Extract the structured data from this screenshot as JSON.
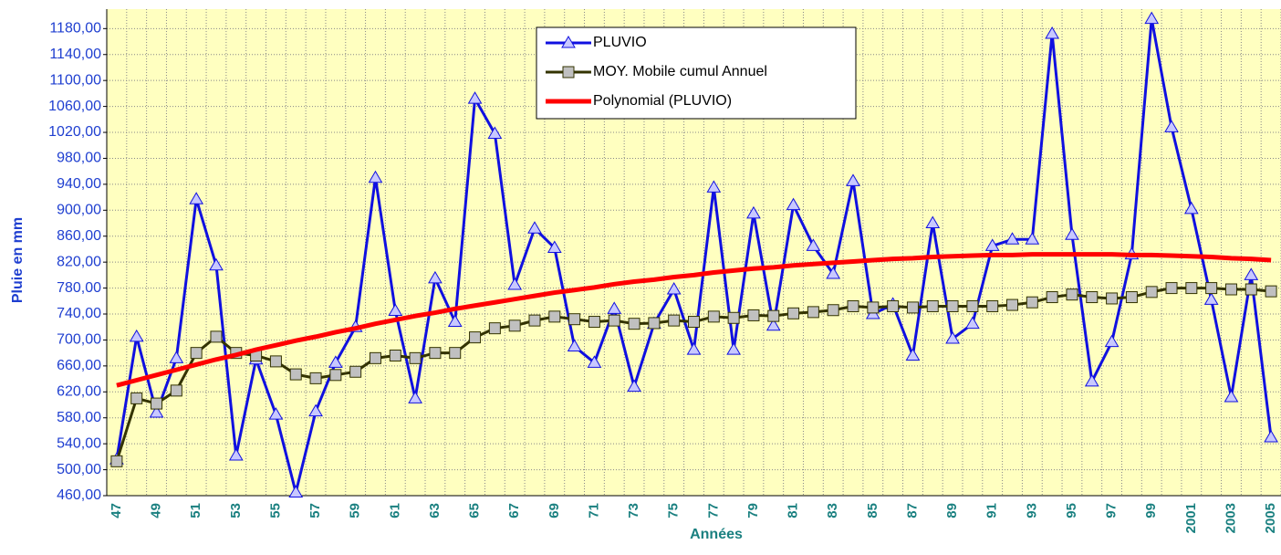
{
  "chart_data": {
    "type": "line",
    "x_label": "Années",
    "y_label": "Pluie en mm",
    "categories": [
      "47",
      null,
      "49",
      null,
      "51",
      null,
      "53",
      null,
      "55",
      null,
      "57",
      null,
      "59",
      null,
      "61",
      null,
      "63",
      null,
      "65",
      null,
      "67",
      null,
      "69",
      null,
      "71",
      null,
      "73",
      null,
      "75",
      null,
      "77",
      null,
      "79",
      null,
      "81",
      null,
      "83",
      null,
      "85",
      null,
      "87",
      null,
      "89",
      null,
      "91",
      null,
      "93",
      null,
      "95",
      null,
      "97",
      null,
      "99",
      null,
      "2001",
      null,
      "2003",
      null,
      "2005"
    ],
    "series": [
      {
        "name": "PLUVIO",
        "color": "#1010e0",
        "marker": "triangle",
        "values": [
          516,
          705,
          588,
          672,
          917,
          815,
          522,
          670,
          585,
          465,
          590,
          665,
          720,
          950,
          745,
          610,
          795,
          728,
          1072,
          1018,
          785,
          872,
          842,
          690,
          665,
          748,
          628,
          725,
          778,
          685,
          935,
          685,
          895,
          722,
          908,
          845,
          802,
          945,
          740,
          755,
          676,
          880,
          702,
          725,
          845,
          855,
          855,
          1172,
          862,
          636,
          697,
          832,
          1195,
          1028,
          902,
          762,
          612,
          800,
          550
        ]
      },
      {
        "name": "MOY. Mobile cumul Annuel",
        "color": "#333300",
        "marker": "square",
        "values": [
          513,
          610,
          602,
          622,
          680,
          705,
          680,
          676,
          667,
          647,
          641,
          646,
          651,
          672,
          676,
          672,
          680,
          680,
          704,
          718,
          722,
          730,
          736,
          732,
          728,
          730,
          725,
          726,
          730,
          728,
          736,
          734,
          738,
          737,
          741,
          743,
          746,
          752,
          750,
          752,
          750,
          752,
          752,
          752,
          752,
          754,
          758,
          766,
          770,
          766,
          764,
          766,
          774,
          780,
          780,
          780,
          778,
          778,
          775
        ]
      },
      {
        "name": "Polynomial (PLUVIO)",
        "color": "#ff0000",
        "marker": "none",
        "values": [
          630,
          638,
          646,
          654,
          662,
          670,
          677,
          685,
          692,
          699,
          705,
          712,
          718,
          725,
          731,
          737,
          742,
          748,
          753,
          758,
          763,
          768,
          773,
          777,
          781,
          786,
          790,
          793,
          797,
          800,
          804,
          807,
          810,
          812,
          815,
          817,
          819,
          821,
          823,
          825,
          826,
          828,
          829,
          830,
          831,
          831,
          832,
          832,
          832,
          832,
          832,
          831,
          831,
          830,
          829,
          828,
          826,
          825,
          823
        ]
      }
    ],
    "ylim": [
      460,
      1210
    ],
    "yticks": [
      {
        "value": 460,
        "label": "460,00"
      },
      {
        "value": 500,
        "label": "500,00"
      },
      {
        "value": 540,
        "label": "540,00"
      },
      {
        "value": 580,
        "label": "580,00"
      },
      {
        "value": 620,
        "label": "620,00"
      },
      {
        "value": 660,
        "label": "660,00"
      },
      {
        "value": 700,
        "label": "700,00"
      },
      {
        "value": 740,
        "label": "740,00"
      },
      {
        "value": 780,
        "label": "780,00"
      },
      {
        "value": 820,
        "label": "820,00"
      },
      {
        "value": 860,
        "label": "860,00"
      },
      {
        "value": 900,
        "label": "900,00"
      },
      {
        "value": 940,
        "label": "940,00"
      },
      {
        "value": 980,
        "label": "980,00"
      },
      {
        "value": 1020,
        "label": "1020,00"
      },
      {
        "value": 1060,
        "label": "1060,00"
      },
      {
        "value": 1100,
        "label": "1100,00"
      },
      {
        "value": 1140,
        "label": "1140,00"
      },
      {
        "value": 1180,
        "label": "1180,00"
      }
    ],
    "grid": true
  }
}
